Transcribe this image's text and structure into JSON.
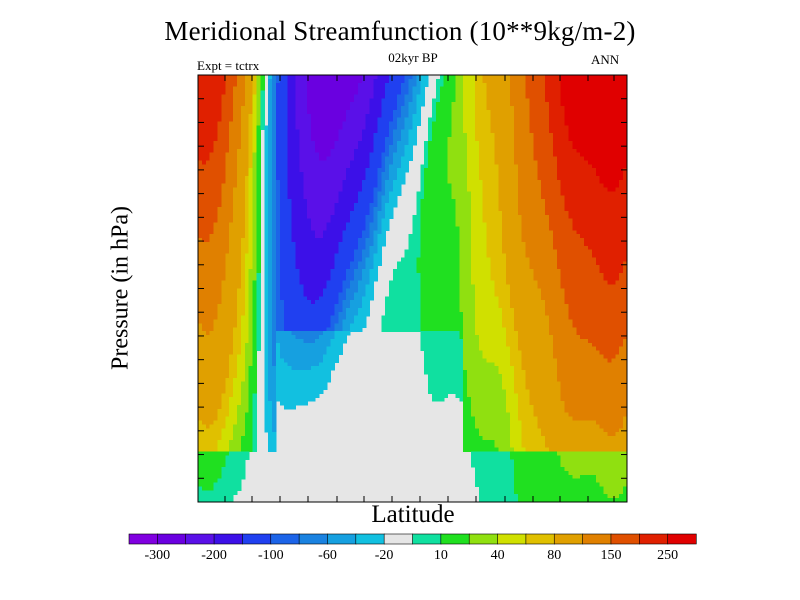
{
  "chart_data": {
    "type": "heatmap",
    "title": "Meridional Streamfunction (10**9kg/m-2)",
    "subtitle": "02kyr BP",
    "left_label": "Expt = tctrx",
    "right_label": "ANN",
    "xlabel": "Latitude",
    "ylabel": "Pressure (in hPa)",
    "colorbar": {
      "colors": [
        "#8000e0",
        "#6a00e0",
        "#5a10e8",
        "#3c10e8",
        "#2040f0",
        "#1c64e8",
        "#1a82e0",
        "#16a0e0",
        "#12c0e0",
        "#e6e6e6",
        "#10e0a0",
        "#20e020",
        "#90e010",
        "#d0e000",
        "#e0c000",
        "#e0a000",
        "#e08000",
        "#e05000",
        "#e02000",
        "#e00000"
      ],
      "tick_labels": [
        "-300",
        "-200",
        "-100",
        "-60",
        "-20",
        "10",
        "40",
        "80",
        "150",
        "250"
      ]
    }
  }
}
